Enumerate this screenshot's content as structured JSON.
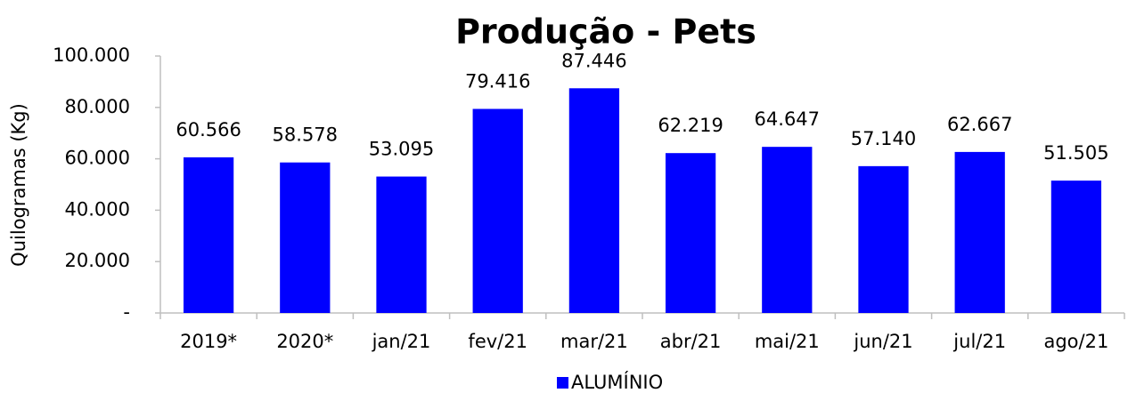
{
  "chart_data": {
    "type": "bar",
    "title": "Produção - Pets",
    "y_label": "Quilogramas (Kg)",
    "categories": [
      "2019*",
      "2020*",
      "jan/21",
      "fev/21",
      "mar/21",
      "abr/21",
      "mai/21",
      "jun/21",
      "jul/21",
      "ago/21"
    ],
    "series": [
      {
        "name": "ALUMÍNIO",
        "color": "#0000ff",
        "values": [
          60566,
          58578,
          53095,
          79416,
          87446,
          62219,
          64647,
          57140,
          62667,
          51505
        ],
        "value_labels": [
          "60.566",
          "58.578",
          "53.095",
          "79.416",
          "87.446",
          "62.219",
          "64.647",
          "57.140",
          "62.667",
          "51.505"
        ]
      }
    ],
    "ylim": [
      0,
      100000
    ],
    "yticks": [
      {
        "value": 0,
        "label": "-"
      },
      {
        "value": 20000,
        "label": "20.000"
      },
      {
        "value": 40000,
        "label": "40.000"
      },
      {
        "value": 60000,
        "label": "60.000"
      },
      {
        "value": 80000,
        "label": "80.000"
      },
      {
        "value": 100000,
        "label": "100.000"
      }
    ],
    "grid": false,
    "legend": "bottom"
  }
}
